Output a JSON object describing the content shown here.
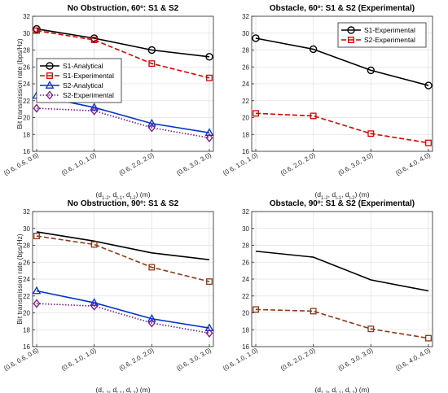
{
  "chart_data": [
    {
      "type": "line",
      "title": "No Obstruction, 60°: S1 & S2",
      "title_parts": [
        "No Obstruction, 60",
        "o",
        ": S1 & S2"
      ],
      "xlabel_parts": [
        "(d",
        "1-2",
        ", d",
        "t-1",
        ", d",
        "t-2",
        ") (m)"
      ],
      "ylabel": "Bit transmission rate (bps/Hz)",
      "categories": [
        "(0.6, 0.6, 0.6)",
        "(0.6, 1.0, 1.0)",
        "(0.6, 2.0, 2.0)",
        "(0.6, 3.0, 3.0)"
      ],
      "ylim": [
        16,
        32
      ],
      "yticks": [
        "16",
        "18",
        "20",
        "22",
        "24",
        "26",
        "28",
        "30",
        "32"
      ],
      "grid": true,
      "legend": "left",
      "series": [
        {
          "name": "S1-Analytical",
          "values": [
            30.5,
            29.4,
            28.0,
            27.2
          ],
          "color": "#000000",
          "dash": "",
          "marker": "circle"
        },
        {
          "name": "S1-Experimental",
          "values": [
            30.3,
            29.2,
            26.4,
            24.7
          ],
          "color": "#dd0000",
          "dash": "6,3",
          "marker": "square"
        },
        {
          "name": "S2-Analytical",
          "values": [
            22.6,
            21.2,
            19.3,
            18.2
          ],
          "color": "#0033cc",
          "dash": "",
          "marker": "triangle"
        },
        {
          "name": "S2-Experimental",
          "values": [
            21.1,
            20.8,
            18.8,
            17.6
          ],
          "color": "#7a1a8c",
          "dash": "1.5,2",
          "marker": "diamond"
        }
      ]
    },
    {
      "type": "line",
      "title": "Obstacle, 60°: S1 & S2 (Experimental)",
      "title_parts": [
        "Obstacle, 60",
        "o",
        ": S1 & S2 (Experimental)"
      ],
      "xlabel_parts": [
        "(d",
        "1-2",
        ", d",
        "t-1",
        ", d",
        "t-2",
        ") (m)"
      ],
      "ylabel": "",
      "categories": [
        "(0.6, 1.0, 1.0)",
        "(0.6, 2.0, 2.0)",
        "(0.6, 3.0, 3.0)",
        "(0.6, 4.0, 4.0)"
      ],
      "ylim": [
        16,
        32
      ],
      "yticks": [
        "16",
        "18",
        "20",
        "22",
        "24",
        "26",
        "28",
        "30",
        "32"
      ],
      "grid": true,
      "legend": "top-right",
      "series": [
        {
          "name": "S1-Experimental",
          "values": [
            29.4,
            28.1,
            25.6,
            23.8
          ],
          "color": "#000000",
          "dash": "",
          "marker": "circle"
        },
        {
          "name": "S2-Experimental",
          "values": [
            20.5,
            20.2,
            18.1,
            17.0
          ],
          "color": "#dd0000",
          "dash": "6,3",
          "marker": "square"
        }
      ]
    },
    {
      "type": "line",
      "title": "No Obstruction, 90°: S1 & S2",
      "title_parts": [
        "No Obstruction, 90",
        "o",
        ": S1 & S2"
      ],
      "xlabel_parts": [
        "(d",
        "1-2",
        ", d",
        "t-1",
        ", d",
        "t-2",
        ") (m)"
      ],
      "ylabel": "Bit transmission rate (bps/Hz)",
      "categories": [
        "(0.6, 0.6, 0.6)",
        "(0.6, 1.0, 1.0)",
        "(0.6, 2.0, 2.0)",
        "(0.6, 3.0, 3.0)"
      ],
      "ylim": [
        16,
        32
      ],
      "yticks": [
        "16",
        "18",
        "20",
        "22",
        "24",
        "26",
        "28",
        "30",
        "32"
      ],
      "grid": true,
      "legend": "none",
      "series": [
        {
          "name": "",
          "values": [
            29.6,
            28.5,
            27.1,
            26.3
          ],
          "color": "#000000",
          "dash": "",
          "marker": "none"
        },
        {
          "name": "",
          "values": [
            29.1,
            28.1,
            25.4,
            23.7
          ],
          "color": "#8b3a1a",
          "dash": "6,3",
          "marker": "square"
        },
        {
          "name": "",
          "values": [
            22.6,
            21.2,
            19.3,
            18.2
          ],
          "color": "#0033cc",
          "dash": "",
          "marker": "triangle"
        },
        {
          "name": "",
          "values": [
            21.1,
            20.8,
            18.8,
            17.6
          ],
          "color": "#7a1a8c",
          "dash": "1.5,2",
          "marker": "diamond"
        }
      ]
    },
    {
      "type": "line",
      "title": "Obstacle, 90°: S1 & S2 (Experimental)",
      "title_parts": [
        "Obstacle, 90",
        "o",
        ": S1 & S2 (Experimental)"
      ],
      "xlabel_parts": [
        "(d",
        "1-2",
        ", d",
        "t-1",
        ", d",
        "t-2",
        ") (m)"
      ],
      "ylabel": "",
      "categories": [
        "(0.6, 1.0, 1.0)",
        "(0.6, 2.0, 2.0)",
        "(0.6, 3.0, 3.0)",
        "(0.6, 4.0, 4.0)"
      ],
      "ylim": [
        16,
        32
      ],
      "yticks": [
        "16",
        "18",
        "20",
        "22",
        "24",
        "26",
        "28",
        "30",
        "32"
      ],
      "grid": true,
      "legend": "none",
      "series": [
        {
          "name": "",
          "values": [
            27.3,
            26.6,
            23.9,
            22.6
          ],
          "color": "#000000",
          "dash": "",
          "marker": "none"
        },
        {
          "name": "",
          "values": [
            20.4,
            20.2,
            18.1,
            17.0
          ],
          "color": "#8b3a1a",
          "dash": "6,3",
          "marker": "square"
        }
      ]
    }
  ]
}
